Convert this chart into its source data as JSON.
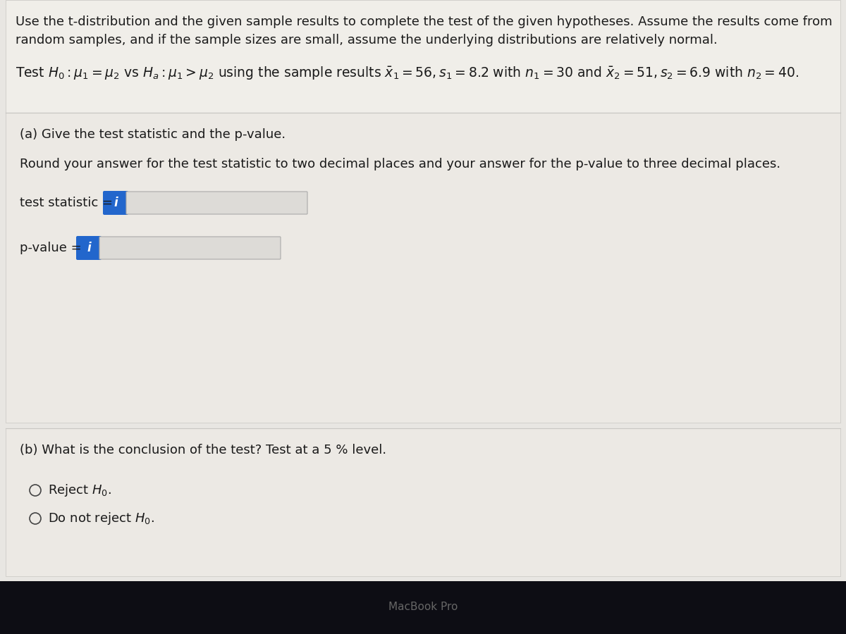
{
  "bg_color": "#3a3a3a",
  "content_bg": "#e8e6e2",
  "card_color": "#ebe9e5",
  "card_border_color": "#c8c6c2",
  "header_text_line1": "Use the t-distribution and the given sample results to complete the test of the given hypotheses. Assume the results come from",
  "header_text_line2": "random samples, and if the sample sizes are small, assume the underlying distributions are relatively normal.",
  "hypothesis_line": "Test $H_0 : \\mu_1 = \\mu_2$ vs $H_a : \\mu_1 > \\mu_2$ using the sample results $\\bar{x}_1 = 56, s_1 = 8.2$ with $n_1 = 30$ and $\\bar{x}_2 = 51, s_2 = 6.9$ with $n_2 = 40$.",
  "part_a_title": "(a) Give the test statistic and the p-value.",
  "part_a_instruction": "Round your answer for the test statistic to two decimal places and your answer for the p-value to three decimal places.",
  "test_stat_label": "test statistic = ",
  "p_value_label": "p-value = ",
  "input_box_color": "#dddbd7",
  "input_box_border": "#aaaaaa",
  "info_icon_color": "#2266cc",
  "info_icon_text": "i",
  "part_b_title": "(b) What is the conclusion of the test? Test at a 5 % level.",
  "option1": "Reject $H_0$.",
  "option2": "Do not reject $H_0$.",
  "radio_color": "#444444",
  "bottom_bar_color": "#0d0d14",
  "macbook_text": "MacBook Pro",
  "macbook_text_color": "#666666",
  "text_color": "#1a1a1a",
  "font_size_body": 13,
  "font_size_hypothesis": 13.5,
  "font_size_label": 13
}
